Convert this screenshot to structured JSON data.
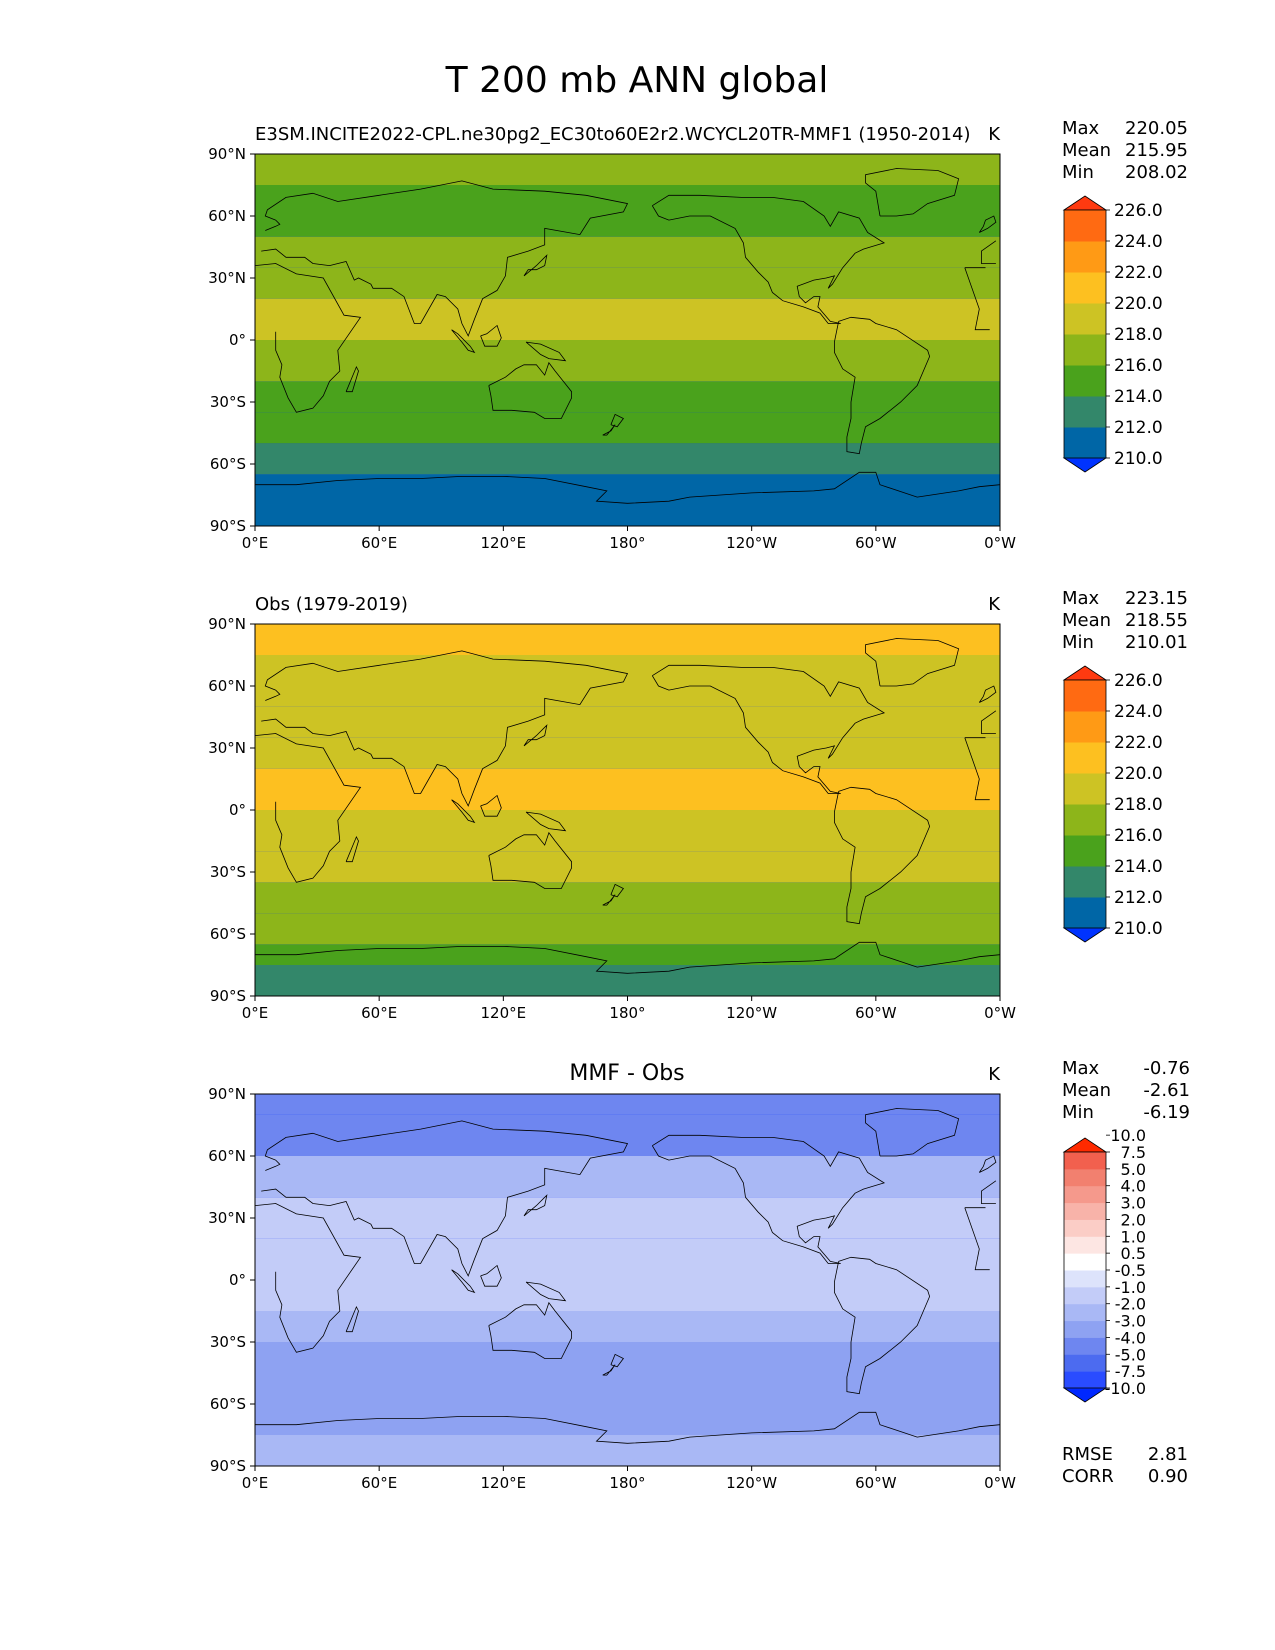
{
  "figure": {
    "title": "T 200 mb ANN global"
  },
  "chart_data": [
    {
      "type": "heatmap",
      "panel": "test",
      "title_left": "E3SM.INCITE2022-CPL.ne30pg2_EC30to60E2r2.WCYCL20TR-MMF1 (1950-2014)",
      "title_center": "",
      "title_right": "K",
      "stats": [
        {
          "label": "Max",
          "value": "220.05"
        },
        {
          "label": "Mean",
          "value": "215.95"
        },
        {
          "label": "Min",
          "value": "208.02"
        }
      ],
      "xlim": [
        0,
        360
      ],
      "ylim": [
        -90,
        90
      ],
      "xticks": [
        "0°E",
        "60°E",
        "120°E",
        "180°",
        "120°W",
        "60°W",
        "0°W"
      ],
      "yticks": [
        "90°N",
        "60°N",
        "30°N",
        "0°",
        "30°S",
        "60°S",
        "90°S"
      ],
      "levels": [
        "210.0",
        "212.0",
        "214.0",
        "216.0",
        "218.0",
        "220.0",
        "222.0",
        "224.0",
        "226.0"
      ],
      "zonal_profile": [
        {
          "lat": -90,
          "value": 209.5
        },
        {
          "lat": -75,
          "value": 210.5
        },
        {
          "lat": -65,
          "value": 212.5
        },
        {
          "lat": -50,
          "value": 215
        },
        {
          "lat": -35,
          "value": 214
        },
        {
          "lat": -20,
          "value": 216.5
        },
        {
          "lat": 0,
          "value": 217.5
        },
        {
          "lat": 20,
          "value": 218.5
        },
        {
          "lat": 35,
          "value": 217
        },
        {
          "lat": 50,
          "value": 216
        },
        {
          "lat": 60,
          "value": 215
        },
        {
          "lat": 75,
          "value": 216
        },
        {
          "lat": 90,
          "value": 216.5
        }
      ]
    },
    {
      "type": "heatmap",
      "panel": "reference",
      "title_left": "Obs (1979-2019)",
      "title_center": "",
      "title_right": "K",
      "stats": [
        {
          "label": "Max",
          "value": "223.15"
        },
        {
          "label": "Mean",
          "value": "218.55"
        },
        {
          "label": "Min",
          "value": "210.01"
        }
      ],
      "xlim": [
        0,
        360
      ],
      "ylim": [
        -90,
        90
      ],
      "xticks": [
        "0°E",
        "60°E",
        "120°E",
        "180°",
        "120°W",
        "60°W",
        "0°W"
      ],
      "yticks": [
        "90°N",
        "60°N",
        "30°N",
        "0°",
        "30°S",
        "60°S",
        "90°S"
      ],
      "levels": [
        "210.0",
        "212.0",
        "214.0",
        "216.0",
        "218.0",
        "220.0",
        "222.0",
        "224.0",
        "226.0"
      ],
      "zonal_profile": [
        {
          "lat": -90,
          "value": 212.5
        },
        {
          "lat": -75,
          "value": 213
        },
        {
          "lat": -65,
          "value": 216
        },
        {
          "lat": -50,
          "value": 218.5
        },
        {
          "lat": -35,
          "value": 217
        },
        {
          "lat": -20,
          "value": 219
        },
        {
          "lat": 0,
          "value": 219.5
        },
        {
          "lat": 20,
          "value": 220.5
        },
        {
          "lat": 35,
          "value": 219
        },
        {
          "lat": 50,
          "value": 218.5
        },
        {
          "lat": 60,
          "value": 219
        },
        {
          "lat": 75,
          "value": 220.5
        },
        {
          "lat": 90,
          "value": 221
        }
      ]
    },
    {
      "type": "heatmap",
      "panel": "difference",
      "title_left": "",
      "title_center": "MMF - Obs",
      "title_right": "K",
      "stats": [
        {
          "label": "Max",
          "value": "-0.76"
        },
        {
          "label": "Mean",
          "value": "-2.61"
        },
        {
          "label": "Min",
          "value": "-6.19"
        }
      ],
      "metrics": [
        {
          "label": "RMSE",
          "value": "2.81"
        },
        {
          "label": "CORR",
          "value": "0.90"
        }
      ],
      "xlim": [
        0,
        360
      ],
      "ylim": [
        -90,
        90
      ],
      "xticks": [
        "0°E",
        "60°E",
        "120°E",
        "180°",
        "120°W",
        "60°W",
        "0°W"
      ],
      "yticks": [
        "90°N",
        "60°N",
        "30°N",
        "0°",
        "30°S",
        "60°S",
        "90°S"
      ],
      "levels": [
        "-10.0",
        "-7.5",
        "-5.0",
        "-4.0",
        "-3.0",
        "-2.0",
        "-1.0",
        "-0.5",
        "0.5",
        "1.0",
        "2.0",
        "3.0",
        "4.0",
        "5.0",
        "7.5",
        "10.0"
      ],
      "zonal_profile": [
        {
          "lat": -90,
          "value": -2.5
        },
        {
          "lat": -75,
          "value": -3
        },
        {
          "lat": -60,
          "value": -3.5
        },
        {
          "lat": -45,
          "value": -4
        },
        {
          "lat": -30,
          "value": -2.5
        },
        {
          "lat": -15,
          "value": -2.2
        },
        {
          "lat": 0,
          "value": -1.8
        },
        {
          "lat": 20,
          "value": -1.8
        },
        {
          "lat": 40,
          "value": -2.2
        },
        {
          "lat": 60,
          "value": -3.5
        },
        {
          "lat": 80,
          "value": -5
        },
        {
          "lat": 90,
          "value": -5
        }
      ]
    }
  ],
  "colors": {
    "test_ref_colormap": [
      "#0033ff",
      "#0066a6",
      "#33876a",
      "#4aa21c",
      "#8db51a",
      "#cdc324",
      "#fdc020",
      "#ff9a15",
      "#ff6a12",
      "#ff3a10"
    ],
    "diff_colormap": [
      "#0028ff",
      "#2a4cff",
      "#4c6bf0",
      "#6e86f0",
      "#8ea2f2",
      "#a9b8f5",
      "#c3ccf8",
      "#dde3fb",
      "#ffffff",
      "#fde6e3",
      "#fbcdc6",
      "#f8b3a9",
      "#f5998c",
      "#f2806f",
      "#f2604e",
      "#ff2a00"
    ],
    "coastline": "#000000"
  }
}
